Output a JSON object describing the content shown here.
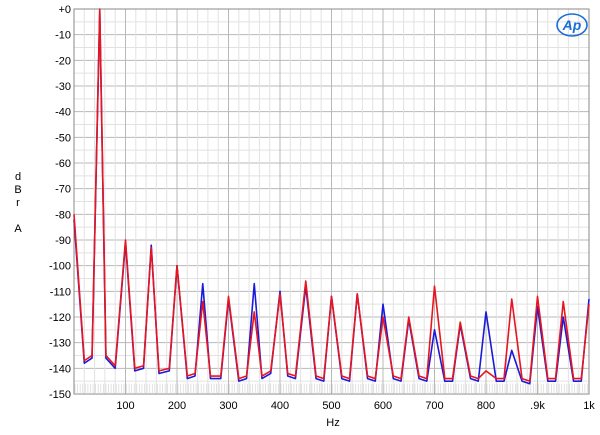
{
  "chart_data": {
    "type": "line",
    "title": "",
    "xlabel": "Hz",
    "ylabel_lines": [
      "d",
      "B",
      "r",
      "",
      "A"
    ],
    "xlim": [
      0,
      1000
    ],
    "ylim": [
      -150,
      0
    ],
    "grid": true,
    "logo_text": "Ap",
    "y_ticks": [
      {
        "value": 0,
        "label": "+0"
      },
      {
        "value": -10,
        "label": "-10"
      },
      {
        "value": -20,
        "label": "-20"
      },
      {
        "value": -30,
        "label": "-30"
      },
      {
        "value": -40,
        "label": "-40"
      },
      {
        "value": -50,
        "label": "-50"
      },
      {
        "value": -60,
        "label": "-60"
      },
      {
        "value": -70,
        "label": "-70"
      },
      {
        "value": -80,
        "label": "-80"
      },
      {
        "value": -90,
        "label": "-90"
      },
      {
        "value": -100,
        "label": "-100"
      },
      {
        "value": -110,
        "label": "-110"
      },
      {
        "value": -120,
        "label": "-120"
      },
      {
        "value": -130,
        "label": "-130"
      },
      {
        "value": -140,
        "label": "-140"
      },
      {
        "value": -150,
        "label": "-150"
      }
    ],
    "x_ticks": [
      {
        "value": 100,
        "label": "100"
      },
      {
        "value": 200,
        "label": "200"
      },
      {
        "value": 300,
        "label": "300"
      },
      {
        "value": 400,
        "label": "400"
      },
      {
        "value": 500,
        "label": "500"
      },
      {
        "value": 600,
        "label": "600"
      },
      {
        "value": 700,
        "label": "700"
      },
      {
        "value": 800,
        "label": "800"
      },
      {
        "value": 900,
        "label": ".9k"
      },
      {
        "value": 1000,
        "label": "1k"
      }
    ],
    "series": [
      {
        "color": "#1a1adb",
        "x": [
          0,
          20,
          35,
          50,
          62,
          80,
          100,
          118,
          135,
          150,
          165,
          185,
          200,
          220,
          235,
          250,
          265,
          285,
          300,
          320,
          335,
          350,
          365,
          382,
          400,
          415,
          430,
          450,
          470,
          485,
          500,
          520,
          535,
          550,
          570,
          585,
          600,
          620,
          635,
          650,
          670,
          685,
          700,
          720,
          735,
          750,
          770,
          785,
          800,
          820,
          835,
          850,
          870,
          885,
          900,
          920,
          935,
          950,
          970,
          985,
          1000
        ],
        "y": [
          -82,
          -138,
          -136,
          -1,
          -136,
          -140,
          -91,
          -141,
          -140,
          -92,
          -142,
          -141,
          -100,
          -144,
          -143,
          -107,
          -144,
          -144,
          -113,
          -145,
          -144,
          -107,
          -144,
          -142,
          -110,
          -143,
          -144,
          -108,
          -144,
          -145,
          -112,
          -144,
          -145,
          -111,
          -144,
          -145,
          -115,
          -144,
          -145,
          -121,
          -144,
          -145,
          -125,
          -145,
          -145,
          -123,
          -144,
          -145,
          -118,
          -145,
          -145,
          -133,
          -145,
          -146,
          -116,
          -145,
          -145,
          -120,
          -145,
          -145,
          -113
        ]
      },
      {
        "color": "#e8141e",
        "x": [
          0,
          20,
          35,
          50,
          62,
          80,
          100,
          118,
          135,
          150,
          165,
          185,
          200,
          220,
          235,
          250,
          265,
          285,
          300,
          320,
          335,
          350,
          365,
          382,
          400,
          415,
          430,
          450,
          470,
          485,
          500,
          520,
          535,
          550,
          570,
          585,
          600,
          620,
          635,
          650,
          670,
          685,
          700,
          720,
          735,
          750,
          770,
          785,
          800,
          820,
          835,
          850,
          870,
          885,
          900,
          920,
          935,
          950,
          970,
          985,
          1000
        ],
        "y": [
          -80,
          -137,
          -135,
          0,
          -135,
          -139,
          -90,
          -140,
          -139,
          -93,
          -141,
          -140,
          -100,
          -143,
          -142,
          -114,
          -143,
          -143,
          -112,
          -144,
          -143,
          -118,
          -143,
          -141,
          -111,
          -142,
          -143,
          -106,
          -143,
          -144,
          -112,
          -143,
          -144,
          -111,
          -143,
          -144,
          -120,
          -143,
          -144,
          -120,
          -143,
          -144,
          -108,
          -144,
          -144,
          -122,
          -143,
          -144,
          -141,
          -144,
          -144,
          -113,
          -144,
          -145,
          -112,
          -144,
          -144,
          -114,
          -144,
          -144,
          -115
        ]
      }
    ]
  }
}
